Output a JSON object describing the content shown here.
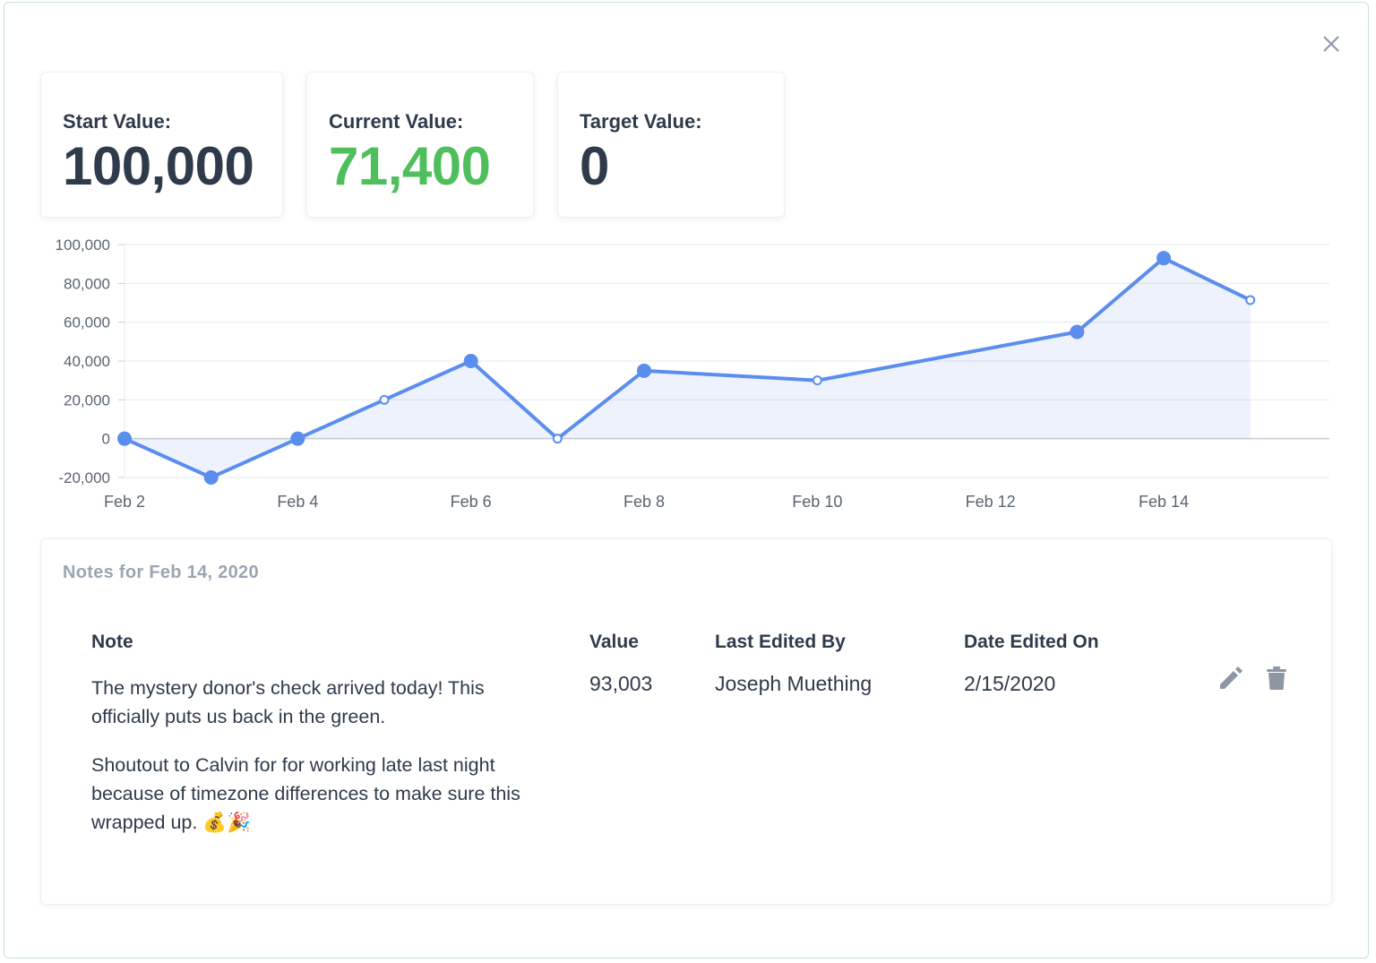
{
  "stats": {
    "start": {
      "label": "Start Value:",
      "value": "100,000"
    },
    "current": {
      "label": "Current Value:",
      "value": "71,400"
    },
    "target": {
      "label": "Target Value:",
      "value": "0"
    }
  },
  "colors": {
    "accent": "#5b8def",
    "green": "#4fbf5e",
    "text": "#2f3a4a",
    "muted": "#9aa6b2"
  },
  "icons": {
    "close": "close-icon",
    "edit": "pencil-icon",
    "delete": "trash-icon"
  },
  "chart_data": {
    "type": "area",
    "x": [
      "2020-02-02",
      "2020-02-03",
      "2020-02-04",
      "2020-02-05",
      "2020-02-06",
      "2020-02-07",
      "2020-02-08",
      "2020-02-10",
      "2020-02-13",
      "2020-02-14",
      "2020-02-15"
    ],
    "values": [
      0,
      -20000,
      0,
      20000,
      40000,
      0,
      35000,
      30000,
      55000,
      93003,
      71400
    ],
    "has_note": [
      true,
      true,
      true,
      false,
      true,
      false,
      true,
      false,
      true,
      true,
      false
    ],
    "x_tick_labels": [
      "Feb 2",
      "Feb 4",
      "Feb 6",
      "Feb 8",
      "Feb 10",
      "Feb 12",
      "Feb 14"
    ],
    "x_ticks": [
      "2020-02-02",
      "2020-02-04",
      "2020-02-06",
      "2020-02-08",
      "2020-02-10",
      "2020-02-12",
      "2020-02-14"
    ],
    "y_ticks": [
      100000,
      80000,
      60000,
      40000,
      20000,
      0,
      -20000
    ],
    "y_tick_labels": [
      "100,000",
      "80,000",
      "60,000",
      "40,000",
      "20,000",
      "0",
      "-20,000"
    ],
    "ylim": [
      -20000,
      100000
    ],
    "grid": true
  },
  "notes": {
    "title": "Notes for Feb 14, 2020",
    "headers": {
      "note": "Note",
      "value": "Value",
      "edited_by": "Last Edited By",
      "date": "Date Edited On"
    },
    "row": {
      "note_p1": "The mystery donor's check arrived today! This officially puts us back in the green.",
      "note_p2": "Shoutout to Calvin for for working late last night because of timezone differences to make sure this wrapped up. 💰🎉",
      "value": "93,003",
      "edited_by": "Joseph Muething",
      "date": "2/15/2020"
    }
  }
}
